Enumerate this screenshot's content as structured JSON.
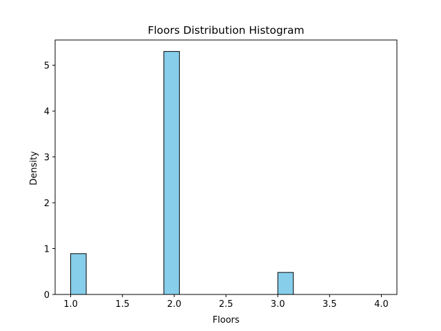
{
  "chart_data": {
    "type": "bar",
    "title": "Floors Distribution Histogram",
    "xlabel": "Floors",
    "ylabel": "Density",
    "xlim": [
      0.85,
      4.15
    ],
    "ylim": [
      0,
      5.55
    ],
    "x_ticks": [
      "1.0",
      "1.5",
      "2.0",
      "2.5",
      "3.0",
      "3.5",
      "4.0"
    ],
    "x_tick_values": [
      1.0,
      1.5,
      2.0,
      2.5,
      3.0,
      3.5,
      4.0
    ],
    "y_ticks": [
      "0",
      "1",
      "2",
      "3",
      "4",
      "5"
    ],
    "y_tick_values": [
      0,
      1,
      2,
      3,
      4,
      5
    ],
    "bins": [
      {
        "x0": 1.0,
        "x1": 1.15,
        "value": 0.89
      },
      {
        "x0": 1.9,
        "x1": 2.05,
        "value": 5.3
      },
      {
        "x0": 3.0,
        "x1": 3.15,
        "value": 0.48
      }
    ],
    "bar_color": "#87ceeb",
    "edge_color": "#000000",
    "grid": false,
    "legend": "none"
  }
}
